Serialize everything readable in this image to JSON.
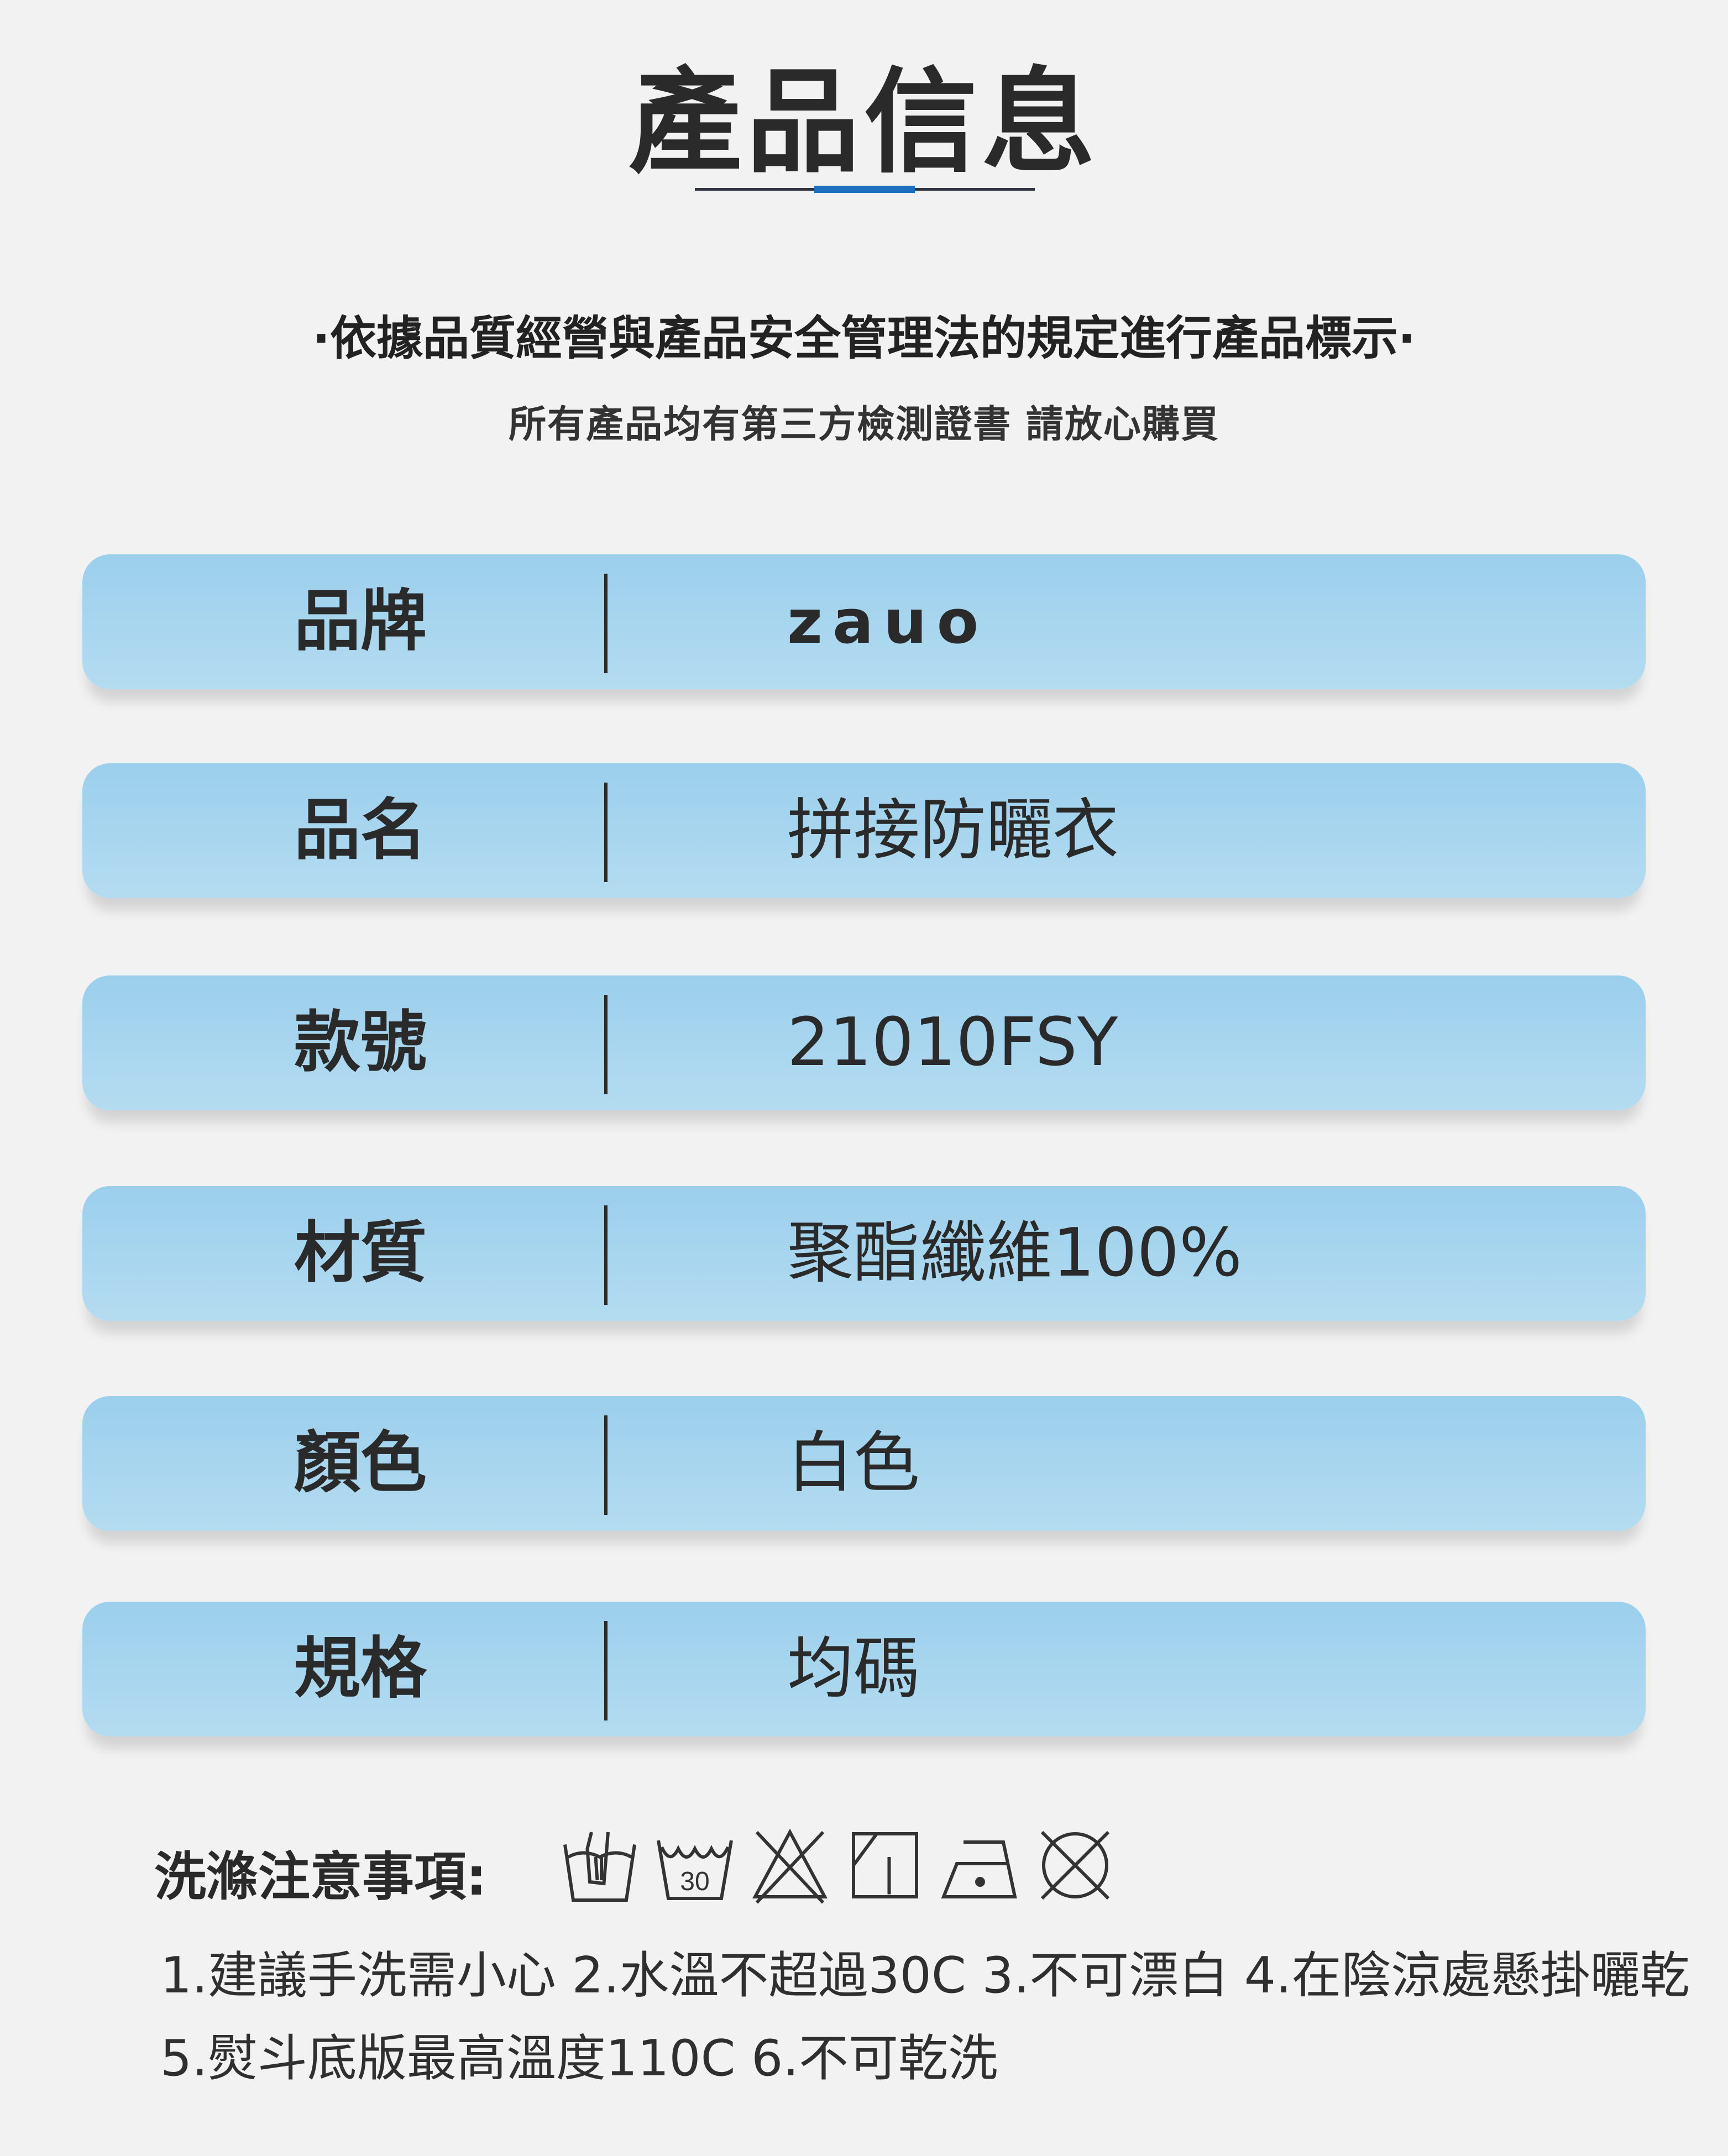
{
  "header": {
    "title": "產品信息",
    "accent_color": "#1e6fc0",
    "subtitle": "·依據品質經營與產品安全管理法的規定進行產品標示·",
    "note": "所有產品均有第三方檢測證書  請放心購買"
  },
  "rows": [
    {
      "label": "品牌",
      "value": "zauo"
    },
    {
      "label": "品名",
      "value": "拼接防曬衣"
    },
    {
      "label": "款號",
      "value": "21010FSY"
    },
    {
      "label": "材質",
      "value": "聚酯纖維100%"
    },
    {
      "label": "顏色",
      "value": "白色"
    },
    {
      "label": "規格",
      "value": "均碼"
    }
  ],
  "care": {
    "title": "洗滌注意事項:",
    "icons": [
      "hand-wash-icon",
      "wash-30-icon",
      "no-bleach-icon",
      "line-dry-shade-icon",
      "iron-low-icon",
      "no-dry-clean-icon"
    ],
    "wash_temp_label": "30",
    "text": "1.建議手洗需小心 2.水溫不超過30C 3.不可漂白 4.在陰涼處懸掛曬乾 5.熨斗底版最高溫度110C 6.不可乾洗"
  }
}
